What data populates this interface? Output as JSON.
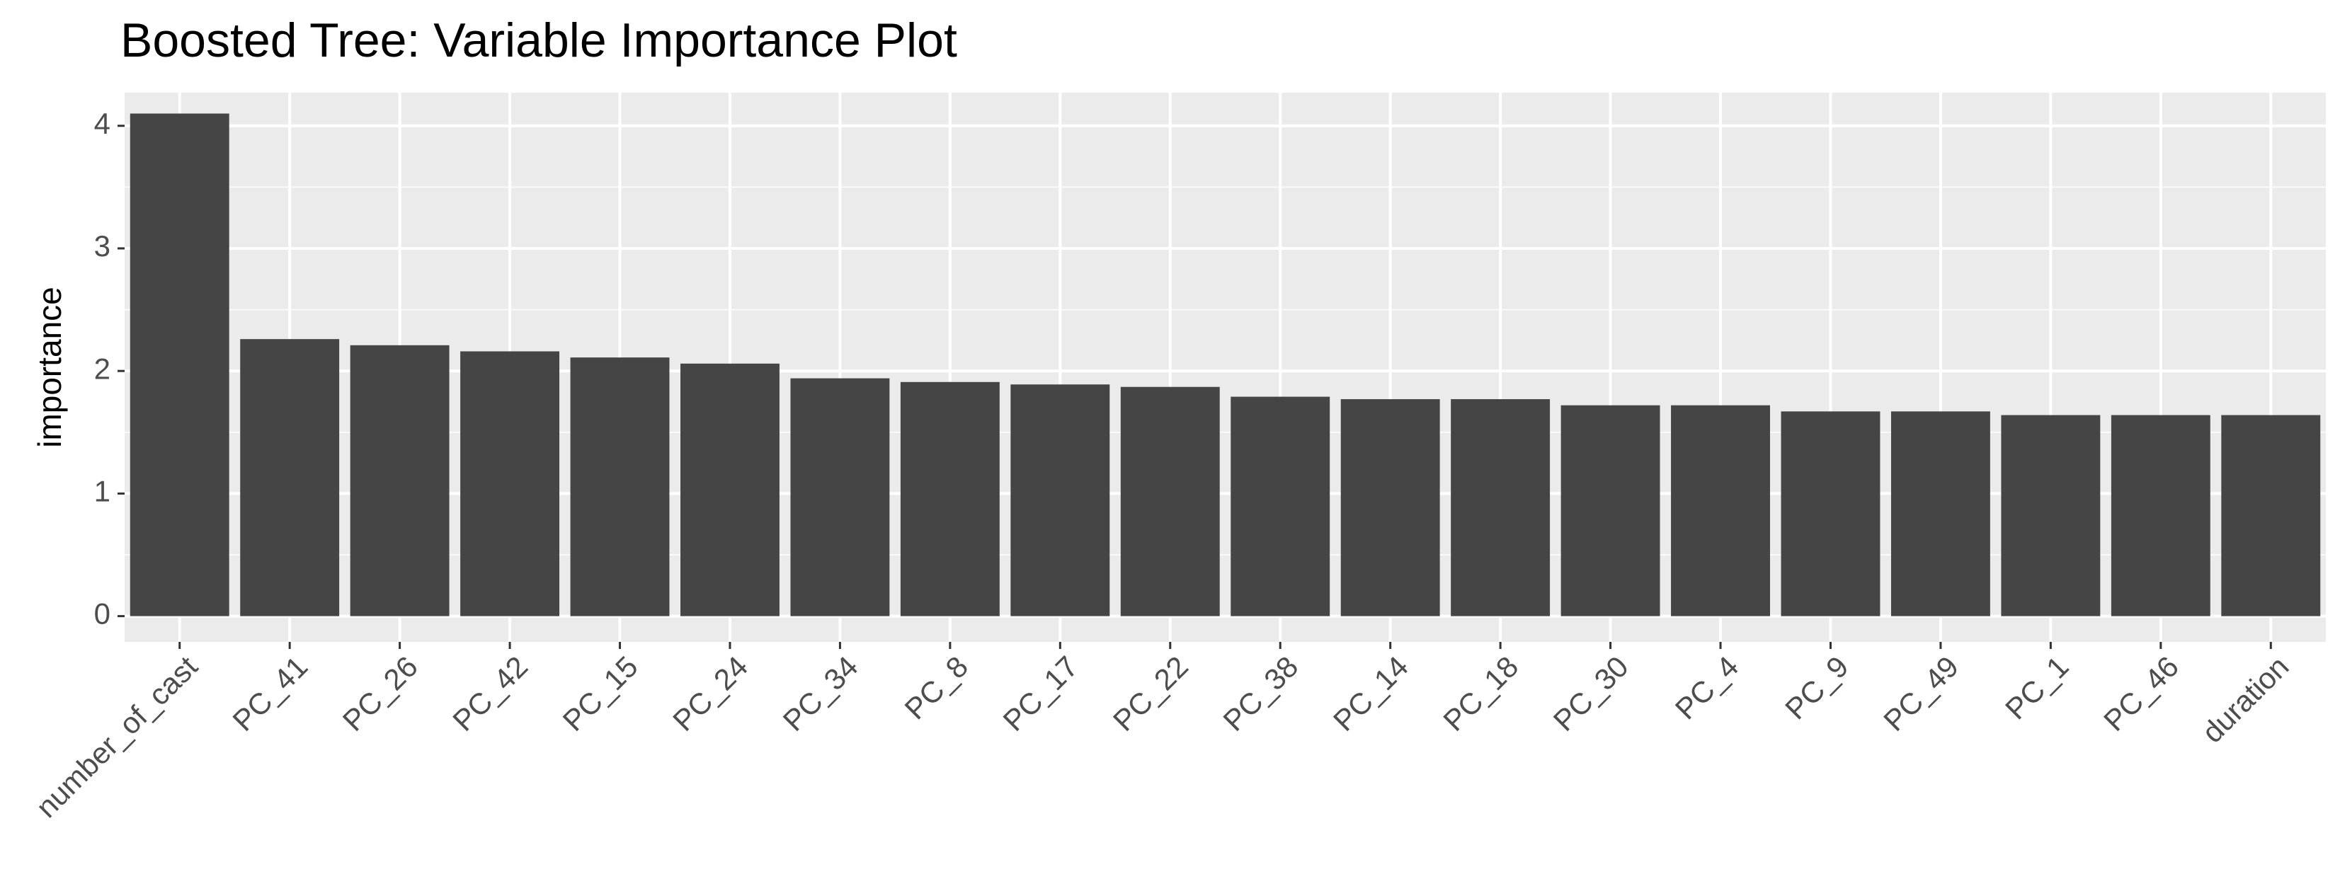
{
  "chart_data": {
    "type": "bar",
    "title": "Boosted Tree: Variable Importance Plot",
    "y_label": "importance",
    "categories": [
      "number_of_cast",
      "PC_41",
      "PC_26",
      "PC_42",
      "PC_15",
      "PC_24",
      "PC_34",
      "PC_8",
      "PC_17",
      "PC_22",
      "PC_38",
      "PC_14",
      "PC_18",
      "PC_30",
      "PC_4",
      "PC_9",
      "PC_49",
      "PC_1",
      "PC_46",
      "duration"
    ],
    "values": [
      4.1,
      2.26,
      2.21,
      2.16,
      2.11,
      2.06,
      1.94,
      1.91,
      1.89,
      1.87,
      1.79,
      1.77,
      1.77,
      1.72,
      1.72,
      1.67,
      1.67,
      1.64,
      1.64,
      1.64
    ],
    "color": "#454545",
    "ylim": [
      -0.21,
      4.27
    ],
    "yticks": [
      0,
      1,
      2,
      3,
      4
    ],
    "grid": true
  }
}
